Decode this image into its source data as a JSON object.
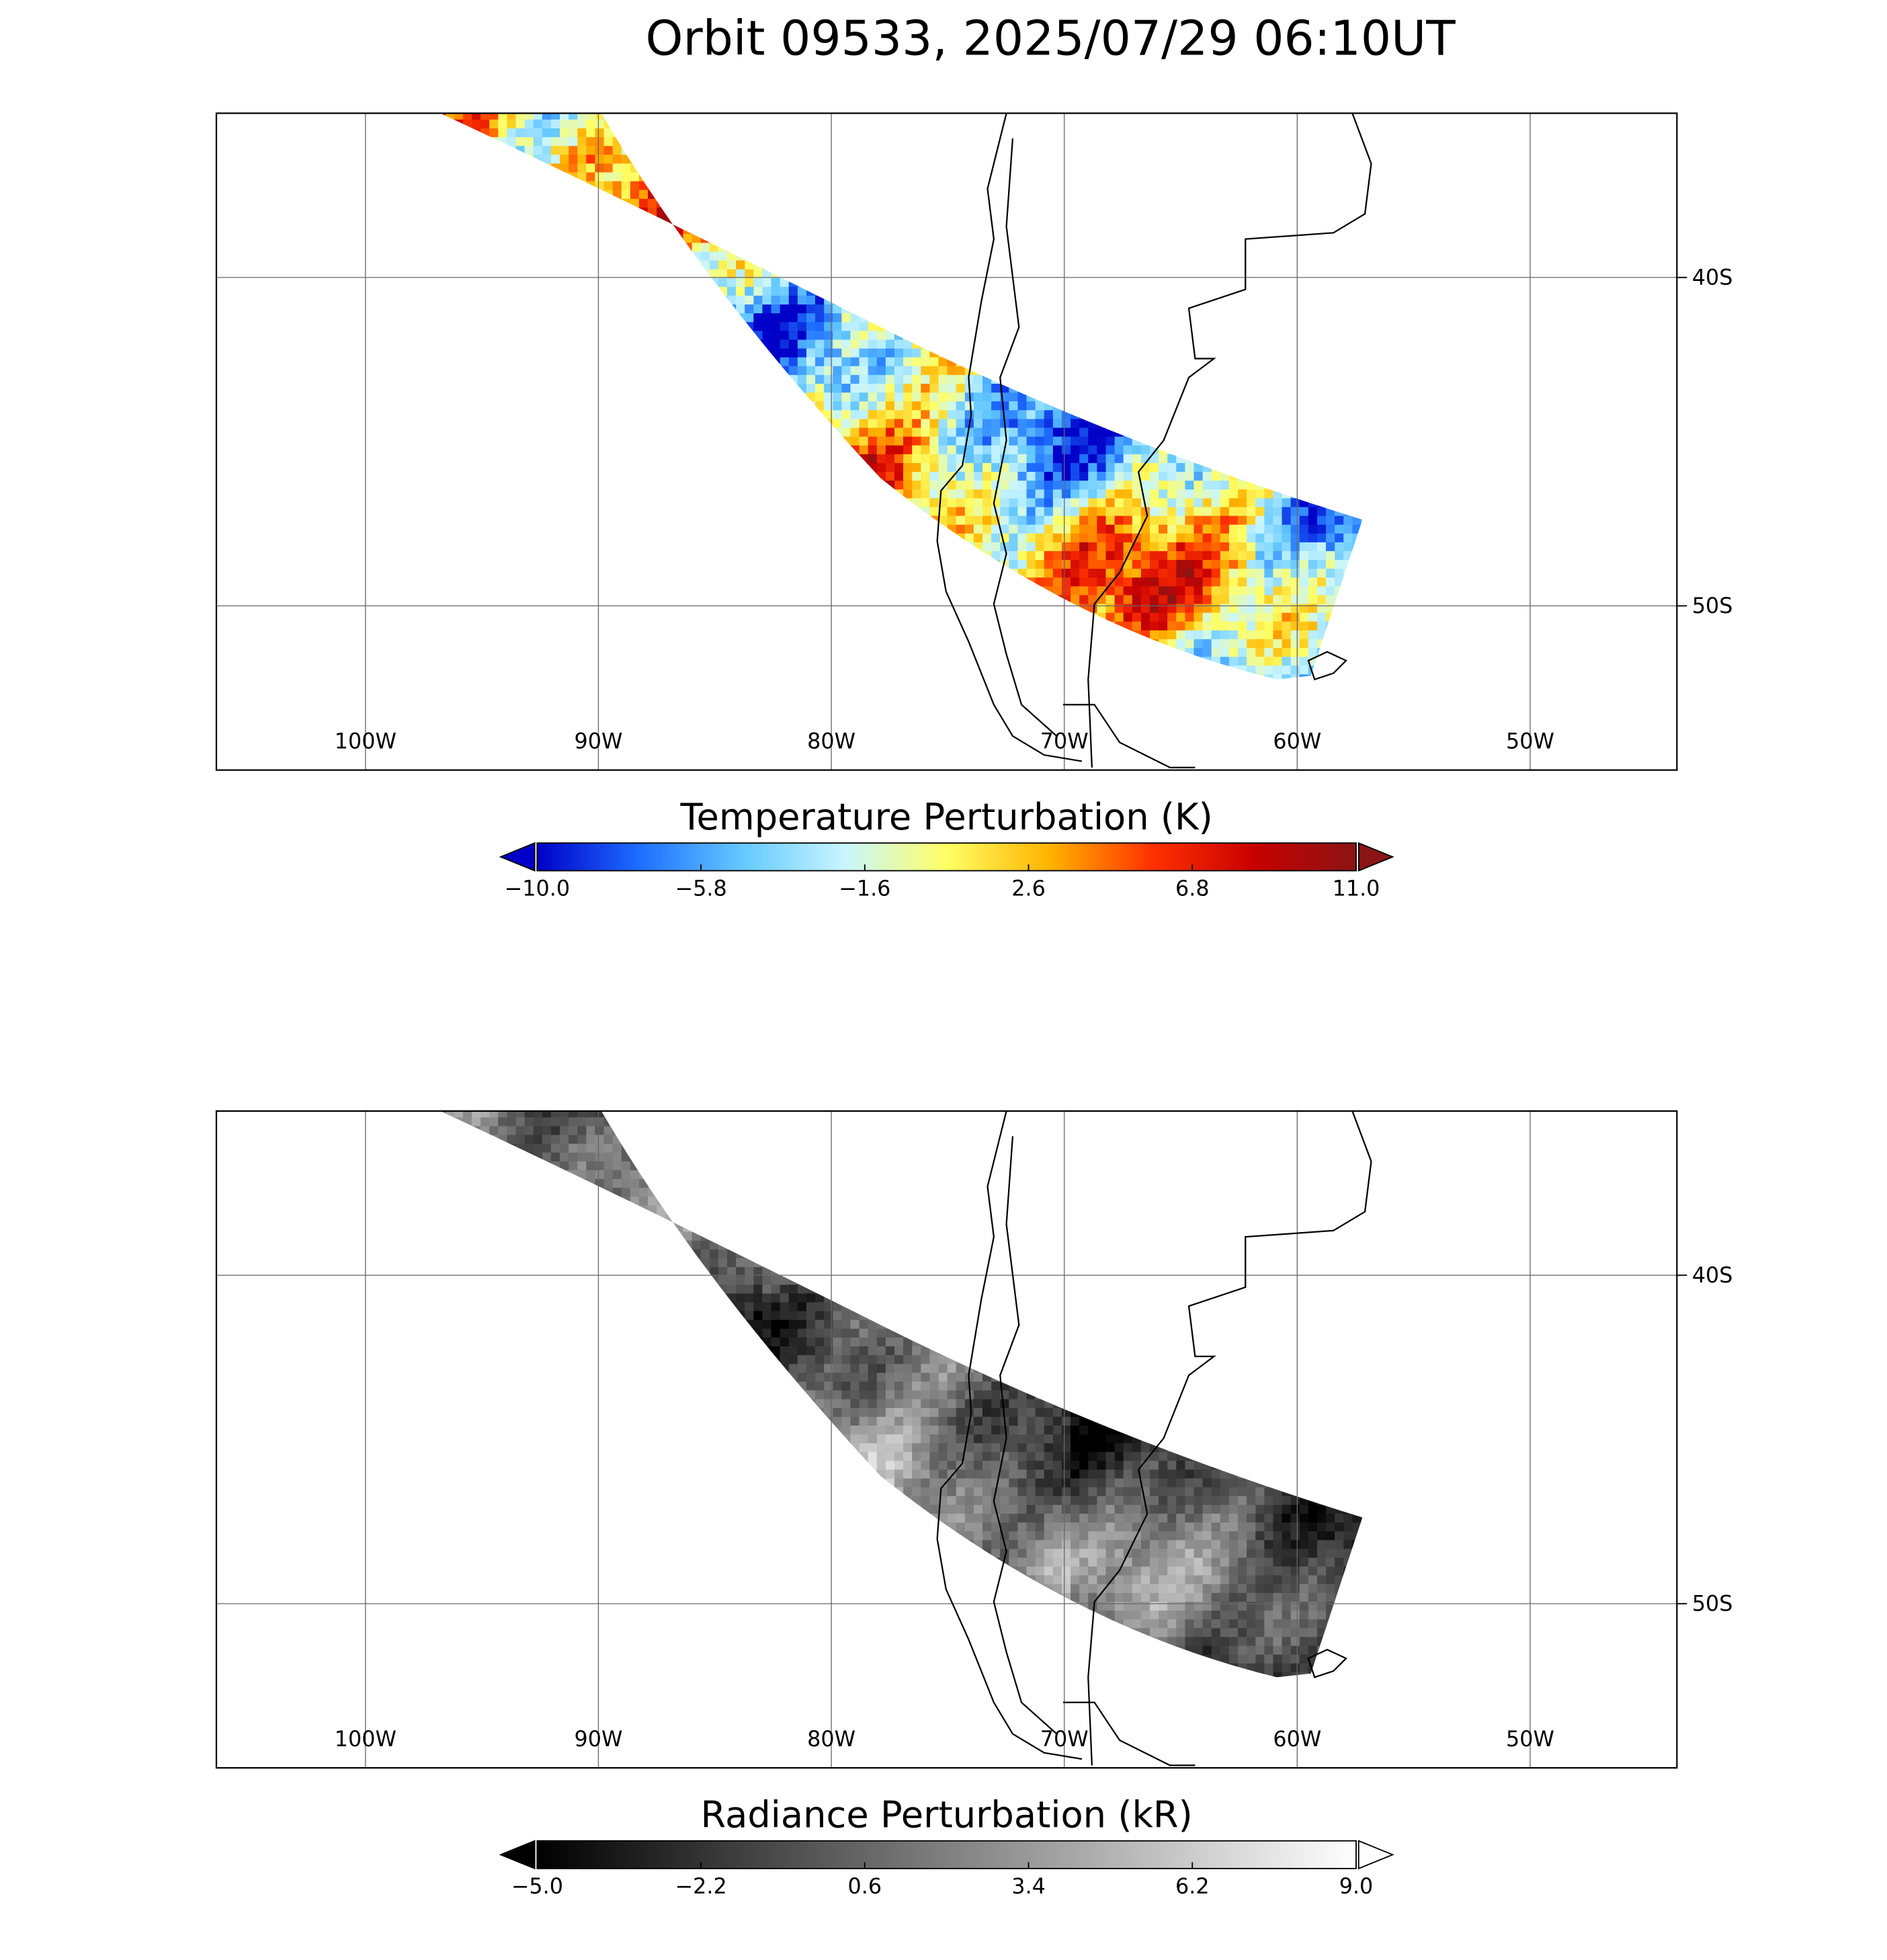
{
  "title": "Orbit 09533, 2025/07/29 06:10UT",
  "panels": [
    {
      "xlim": [
        -106.4,
        -43.7
      ],
      "ylim": [
        -55,
        -35
      ],
      "xticks": [
        {
          "value": -100,
          "label": "100W"
        },
        {
          "value": -90,
          "label": "90W"
        },
        {
          "value": -80,
          "label": "80W"
        },
        {
          "value": -70,
          "label": "70W"
        },
        {
          "value": -60,
          "label": "60W"
        },
        {
          "value": -50,
          "label": "50W"
        }
      ],
      "yticks": [
        {
          "value": -40,
          "label": "40S"
        },
        {
          "value": -50,
          "label": "50S"
        }
      ],
      "colorbar": {
        "label": "Temperature Perturbation (K)",
        "lim": [
          -10,
          11
        ],
        "ticks": [
          {
            "value": -10,
            "label": "−10.0"
          },
          {
            "value": -5.8,
            "label": "−5.8"
          },
          {
            "value": -1.6,
            "label": "−1.6"
          },
          2.6,
          6.8,
          {
            "value": 11,
            "label": "11.0"
          }
        ],
        "colors": [
          "#0000c8",
          "#1e6eff",
          "#64c8ff",
          "#c8f5ff",
          "#ffff64",
          "#ffb400",
          "#ff3200",
          "#c80000",
          "#8c1414"
        ]
      }
    },
    {
      "xlim": [
        -106.4,
        -43.7
      ],
      "ylim": [
        -55,
        -35
      ],
      "xticks": [
        {
          "value": -100,
          "label": "100W"
        },
        {
          "value": -90,
          "label": "90W"
        },
        {
          "value": -80,
          "label": "80W"
        },
        {
          "value": -70,
          "label": "70W"
        },
        {
          "value": -60,
          "label": "60W"
        },
        {
          "value": -50,
          "label": "50W"
        }
      ],
      "yticks": [
        {
          "value": -40,
          "label": "40S"
        },
        {
          "value": -50,
          "label": "50S"
        }
      ],
      "colorbar": {
        "label": "Radiance Perturbation (kR)",
        "lim": [
          -5,
          9
        ],
        "ticks": [
          {
            "value": -5,
            "label": "−5.0"
          },
          {
            "value": -2.2,
            "label": "−2.2"
          },
          0.6,
          3.4,
          6.2,
          {
            "value": 9,
            "label": "9.0"
          }
        ],
        "colors": [
          "#000000",
          "#ffffff"
        ]
      }
    }
  ]
}
